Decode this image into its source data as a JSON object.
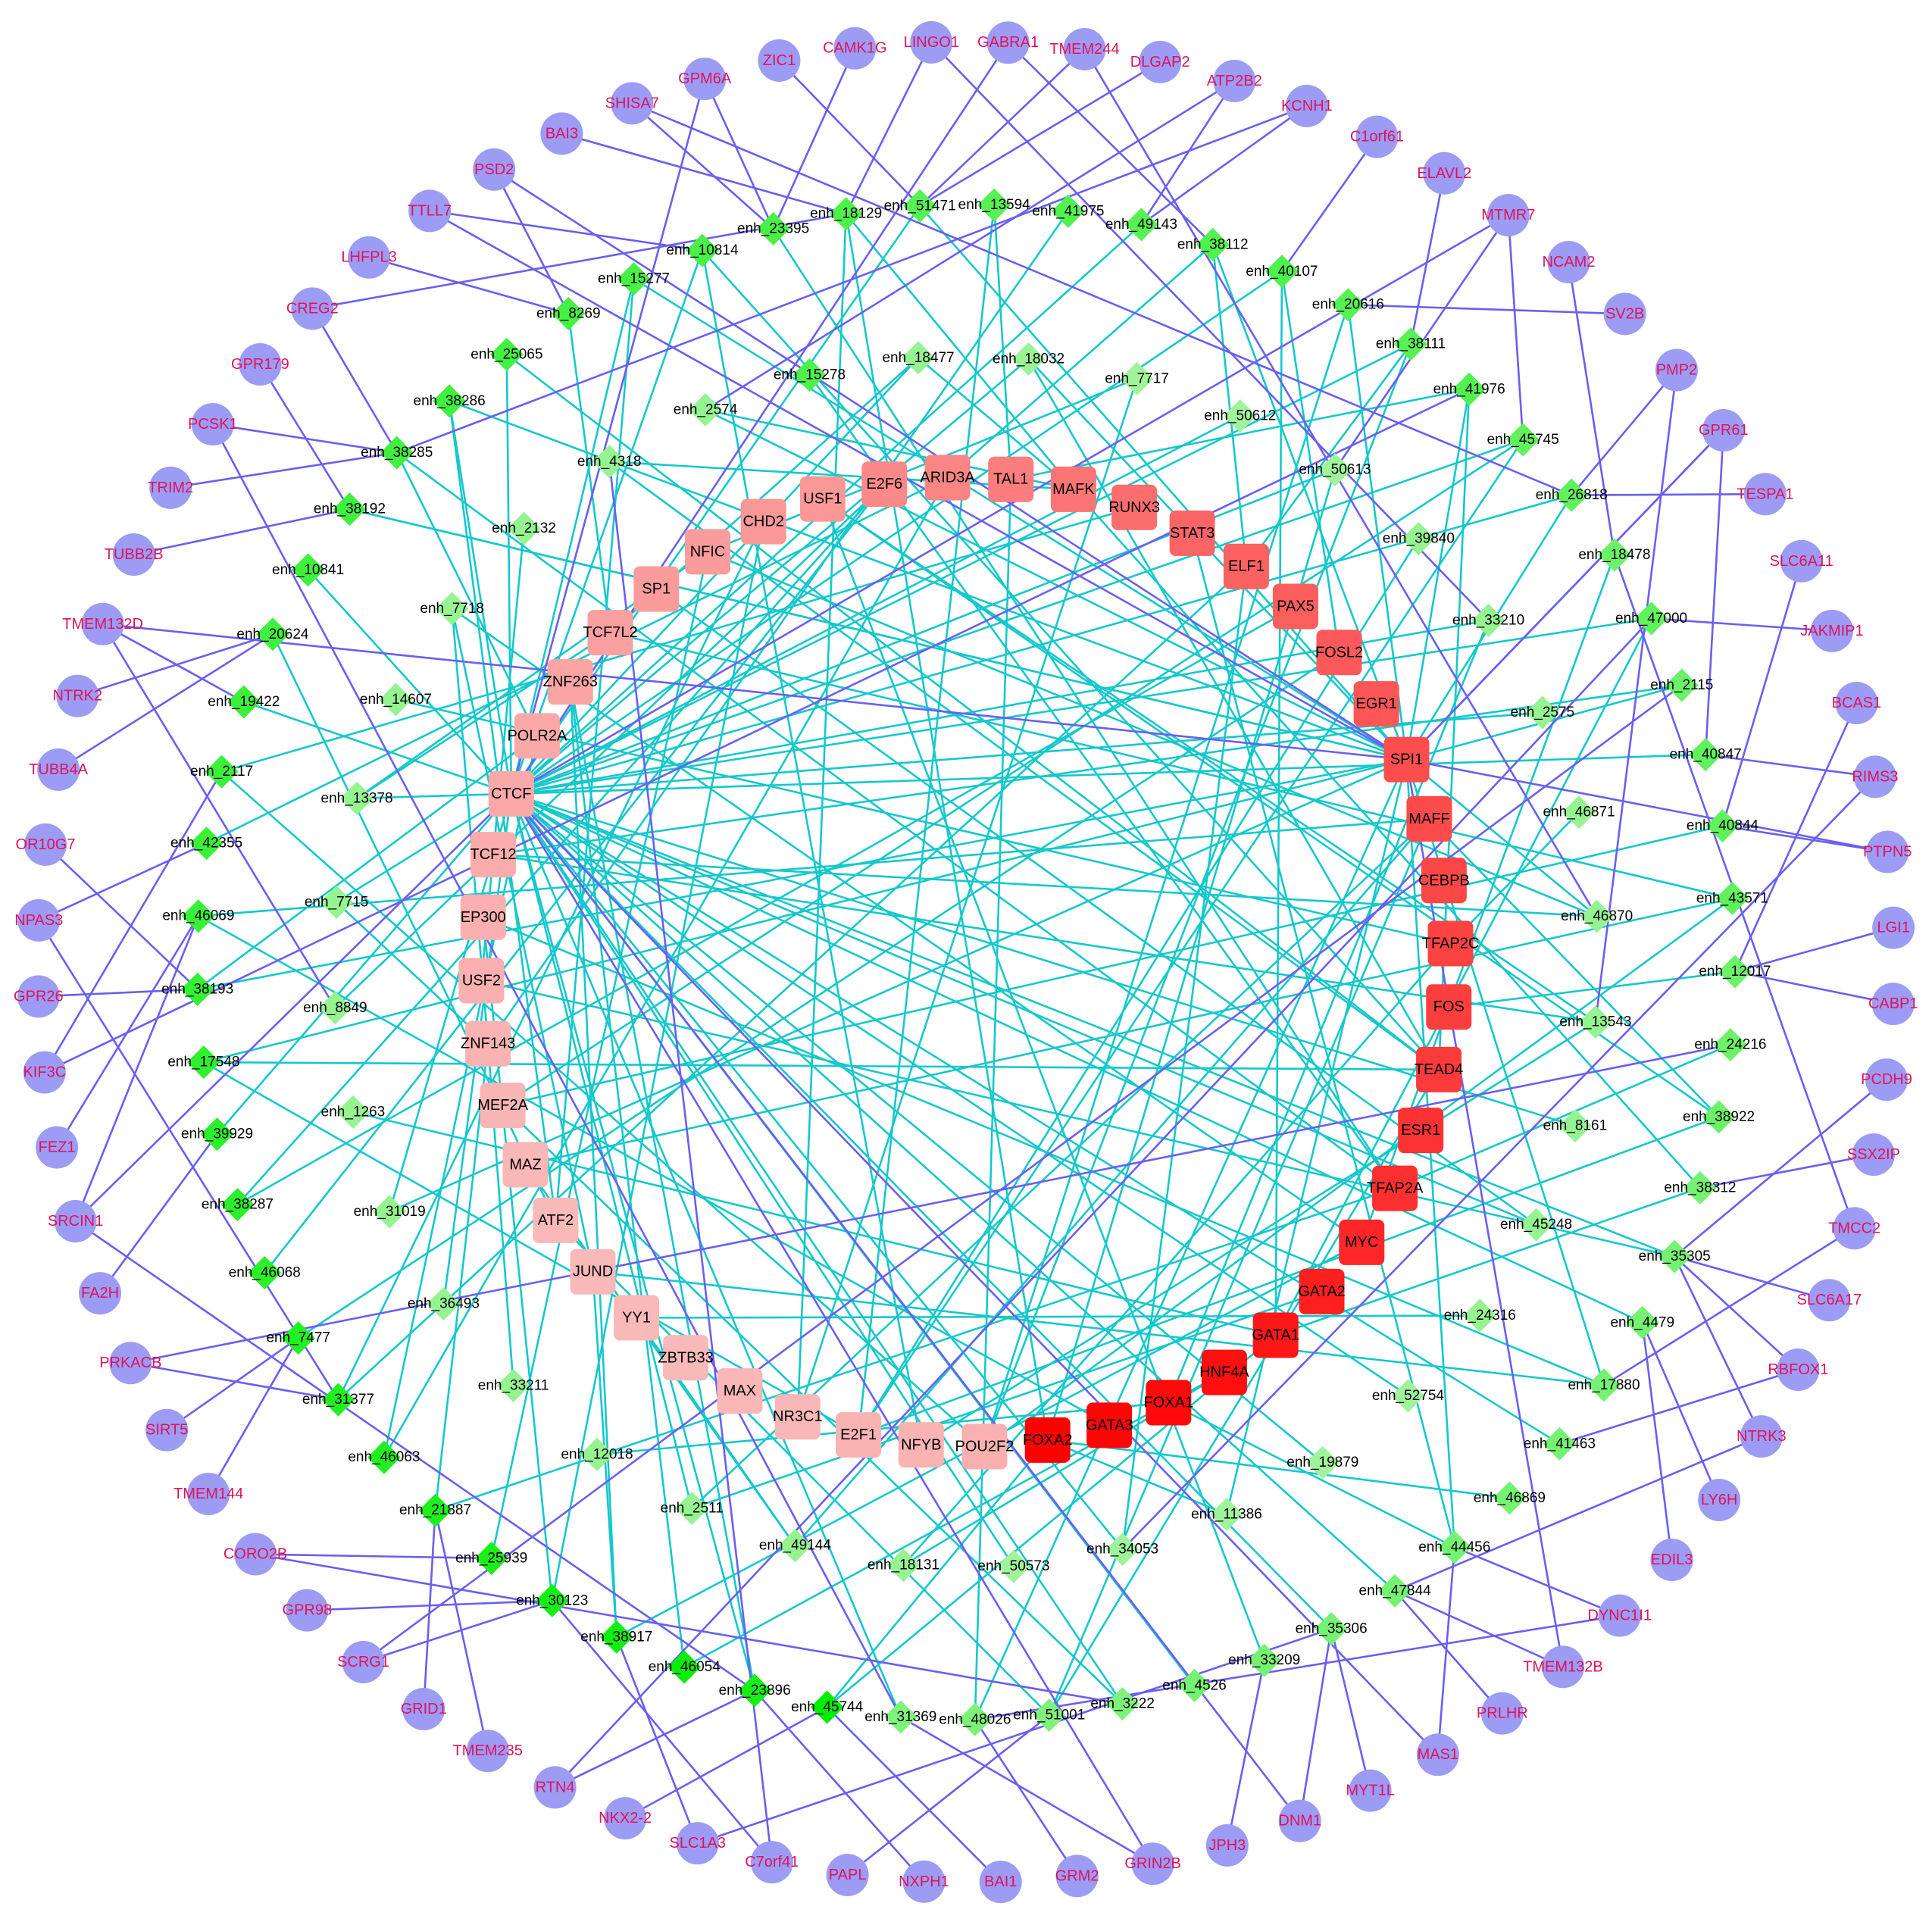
{
  "colors": {
    "gene_fill": "#9c9cf5",
    "gene_text": "#e0125a",
    "edge_tf_enhancer": "#15c8cc",
    "edge_enhancer_gene": "#6a5ff0",
    "tf_gradient": [
      "#f9c3c3",
      "#ff0000"
    ],
    "enhancer_gradient": [
      "#d6f5cf",
      "#00ee00"
    ]
  },
  "network": {
    "genes": [
      "CAMK1G",
      "LINGO1",
      "GABRA1",
      "TMEM244",
      "DLGAP2",
      "ATP2B2",
      "KCNH1",
      "C1orf61",
      "ELAVL2",
      "MTMR7",
      "NCAM2",
      "SV2B",
      "PMP2",
      "GPR61",
      "TESPA1",
      "SLC6A11",
      "JAKMIP1",
      "BCAS1",
      "RIMS3",
      "PTPN5",
      "LGI1",
      "CABP1",
      "PCDH9",
      "SSX2IP",
      "TMCC2",
      "SLC6A17",
      "RBFOX1",
      "NTRK3",
      "LY6H",
      "EDIL3",
      "DYNC1I1",
      "TMEM132B",
      "PRLHR",
      "MAS1",
      "MYT1L",
      "DNM1",
      "JPH3",
      "GRIN2B",
      "GRM2",
      "BAI1",
      "NXPH1",
      "PAPL",
      "C7orf41",
      "SLC1A3",
      "NKX2-2",
      "RTN4",
      "TMEM235",
      "GRID1",
      "SCRG1",
      "GPR98",
      "CORO2B",
      "TMEM144",
      "SIRT5",
      "PRKACB",
      "FA2H",
      "SRCIN1",
      "FEZ1",
      "KIF3C",
      "GPR26",
      "NPAS3",
      "OR10G7",
      "TUBB4A",
      "NTRK2",
      "TMEM132D",
      "TUBB2B",
      "TRIM2",
      "PCSK1",
      "GPR179",
      "CREG2",
      "LHFPL3",
      "TTLL7",
      "PSD2",
      "BAI3",
      "SHISA7",
      "GPM6A",
      "ZIC1"
    ],
    "enhancers": [
      "enh_51471",
      "enh_13594",
      "enh_41975",
      "enh_49143",
      "enh_38112",
      "enh_40107",
      "enh_20616",
      "enh_38111",
      "enh_41976",
      "enh_45745",
      "enh_26818",
      "enh_18478",
      "enh_47000",
      "enh_2115",
      "enh_40847",
      "enh_40844",
      "enh_43571",
      "enh_12017",
      "enh_24216",
      "enh_38922",
      "enh_38312",
      "enh_35305",
      "enh_4479",
      "enh_17880",
      "enh_41463",
      "enh_46869",
      "enh_44456",
      "enh_47844",
      "enh_35306",
      "enh_33209",
      "enh_4526",
      "enh_3222",
      "enh_51001",
      "enh_48026",
      "enh_31369",
      "enh_45744",
      "enh_23896",
      "enh_46054",
      "enh_38917",
      "enh_30123",
      "enh_25939",
      "enh_21887",
      "enh_46063",
      "enh_31377",
      "enh_7477",
      "enh_46068",
      "enh_38287",
      "enh_39929",
      "enh_17548",
      "enh_38193",
      "enh_46069",
      "enh_42355",
      "enh_2117",
      "enh_19422",
      "enh_20624",
      "enh_10841",
      "enh_38192",
      "enh_38285",
      "enh_38286",
      "enh_25065",
      "enh_8269",
      "enh_15277",
      "enh_10814",
      "enh_23395",
      "enh_18129",
      "enh_15278",
      "enh_18477",
      "enh_18032",
      "enh_7717",
      "enh_50612",
      "enh_50613",
      "enh_39840",
      "enh_33210",
      "enh_2575",
      "enh_46871",
      "enh_46870",
      "enh_13543",
      "enh_8161",
      "enh_45248",
      "enh_24316",
      "enh_52754",
      "enh_19879",
      "enh_11386",
      "enh_34053",
      "enh_50573",
      "enh_18131",
      "enh_49144",
      "enh_2511",
      "enh_12018",
      "enh_33211",
      "enh_36493",
      "enh_31019",
      "enh_1263",
      "enh_8849",
      "enh_7715",
      "enh_13378",
      "enh_14607",
      "enh_7718",
      "enh_2132",
      "enh_4318",
      "enh_2574"
    ],
    "tfs": [
      "USF1",
      "E2F6",
      "ARID3A",
      "TAL1",
      "MAFK",
      "RUNX3",
      "STAT3",
      "ELF1",
      "PAX5",
      "FOSL2",
      "EGR1",
      "SPI1",
      "MAFF",
      "CEBPB",
      "TFAP2C",
      "FOS",
      "TEAD4",
      "ESR1",
      "TFAP2A",
      "MYC",
      "GATA2",
      "GATA1",
      "HNF4A",
      "FOXA1",
      "GATA3",
      "FOXA2",
      "POU2F2",
      "NFYB",
      "E2F1",
      "NR3C1",
      "MAX",
      "ZBTB33",
      "YY1",
      "JUND",
      "ATF2",
      "MAZ",
      "MEF2A",
      "ZNF143",
      "USF2",
      "EP300",
      "TCF12",
      "CTCF",
      "POLR2A",
      "ZNF263",
      "TCF7L2",
      "SP1",
      "NFIC",
      "CHD2"
    ],
    "tf_intensity": [
      0.22,
      0.3,
      0.32,
      0.36,
      0.4,
      0.44,
      0.48,
      0.5,
      0.52,
      0.54,
      0.56,
      0.6,
      0.62,
      0.64,
      0.66,
      0.68,
      0.7,
      0.74,
      0.76,
      0.8,
      0.84,
      0.88,
      0.92,
      0.95,
      0.97,
      1.0,
      0.1,
      0.08,
      0.08,
      0.06,
      0.06,
      0.05,
      0.05,
      0.05,
      0.05,
      0.06,
      0.07,
      0.08,
      0.1,
      0.1,
      0.12,
      0.14,
      0.14,
      0.16,
      0.18,
      0.2,
      0.2,
      0.22
    ],
    "enhancer_intensity": [
      0.6,
      0.6,
      0.62,
      0.6,
      0.62,
      0.64,
      0.6,
      0.6,
      0.62,
      0.55,
      0.55,
      0.5,
      0.55,
      0.5,
      0.55,
      0.55,
      0.55,
      0.5,
      0.5,
      0.5,
      0.45,
      0.45,
      0.45,
      0.45,
      0.45,
      0.45,
      0.45,
      0.45,
      0.45,
      0.45,
      0.45,
      0.4,
      0.4,
      0.42,
      0.4,
      1.0,
      0.9,
      0.95,
      0.92,
      0.9,
      0.88,
      0.86,
      0.85,
      0.84,
      0.83,
      0.8,
      0.8,
      0.8,
      0.78,
      0.76,
      0.74,
      0.72,
      0.72,
      0.72,
      0.7,
      0.7,
      0.7,
      0.7,
      0.7,
      0.68,
      0.68,
      0.66,
      0.66,
      0.66,
      0.64,
      0.64,
      0.3,
      0.28,
      0.25,
      0.25,
      0.25,
      0.3,
      0.3,
      0.3,
      0.3,
      0.3,
      0.3,
      0.3,
      0.3,
      0.3,
      0.25,
      0.25,
      0.25,
      0.25,
      0.25,
      0.3,
      0.3,
      0.3,
      0.3,
      0.3,
      0.3,
      0.3,
      0.3,
      0.3,
      0.3,
      0.3,
      0.3,
      0.3,
      0.3,
      0.3,
      0.3
    ]
  }
}
